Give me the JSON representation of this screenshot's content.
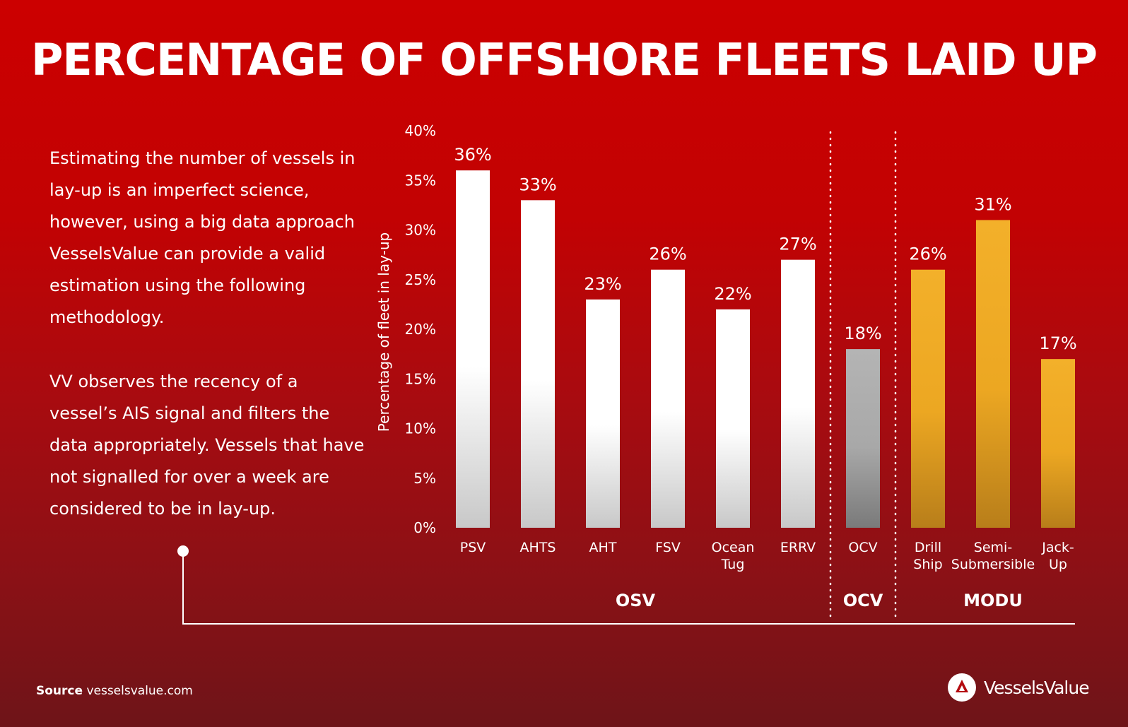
{
  "title": "PERCENTAGE OF OFFSHORE FLEETS LAID UP",
  "paragraphs": [
    "Estimating the number of vessels in lay-up is an imperfect science, however, using a big data approach VesselsValue can provide a valid estimation using the following methodology.",
    "VV observes the recency of a vessel’s AIS signal and filters the data appropriately. Vessels that have not signalled for over a week are considered to be in lay-up."
  ],
  "source": {
    "label": "Source",
    "text": "vesselsvalue.com"
  },
  "brand": {
    "name": "VesselsValue",
    "icon": "vesselsvalue-logo-icon"
  },
  "chart_data": {
    "type": "bar",
    "ylabel": "Percentage of fleet in lay-up",
    "ylim": [
      0,
      40
    ],
    "yticks": [
      "0%",
      "5%",
      "10%",
      "15%",
      "20%",
      "25%",
      "30%",
      "35%",
      "40%"
    ],
    "categories": [
      "PSV",
      "AHTS",
      "AHT",
      "FSV",
      "Ocean Tug",
      "ERRV",
      "OCV",
      "Drill Ship",
      "Semi-Submersible",
      "Jack-Up"
    ],
    "category_label_lines": [
      [
        "PSV"
      ],
      [
        "AHTS"
      ],
      [
        "AHT"
      ],
      [
        "FSV"
      ],
      [
        "Ocean",
        "Tug"
      ],
      [
        "ERRV"
      ],
      [
        "OCV"
      ],
      [
        "Drill",
        "Ship"
      ],
      [
        "Semi-",
        "Submersible"
      ],
      [
        "Jack-",
        "Up"
      ]
    ],
    "values": [
      36,
      33,
      23,
      26,
      22,
      27,
      18,
      26,
      31,
      17
    ],
    "data_labels": [
      "36%",
      "33%",
      "23%",
      "26%",
      "22%",
      "27%",
      "18%",
      "26%",
      "31%",
      "17%"
    ],
    "groups": [
      {
        "name": "OSV",
        "count": 6,
        "color": "#ffffff"
      },
      {
        "name": "OCV",
        "count": 1,
        "color": "#a8a8a8"
      },
      {
        "name": "MODU",
        "count": 3,
        "color": "#f0aa22"
      }
    ],
    "grid": false,
    "legend": "none"
  }
}
